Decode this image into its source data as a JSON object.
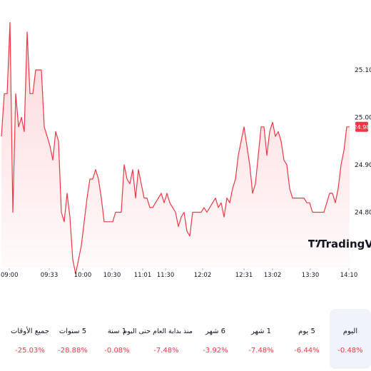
{
  "chart_data": {
    "type": "area",
    "y_ticks": [
      25.1,
      25.0,
      24.9,
      24.8
    ],
    "ylim": [
      24.67,
      25.2
    ],
    "x_ticks": [
      "09:00",
      "09:33",
      "10:00",
      "10:30",
      "11:01",
      "11:30",
      "12:02",
      "12:31",
      "13:02",
      "13:30",
      "14:10"
    ],
    "current_price": "24.98",
    "line_color": "#f23645",
    "fill_color": "#fde3e5",
    "watermark": "TradingView",
    "series": [
      {
        "values": [
          24.96,
          25.05,
          25.05,
          25.2,
          24.8,
          25.05,
          24.98,
          25.0,
          24.97,
          25.18,
          25.05,
          25.05,
          25.1,
          25.1,
          25.1,
          24.98,
          24.96,
          24.94,
          24.91,
          24.97,
          24.95,
          24.8,
          24.78,
          24.84,
          24.79,
          24.7,
          24.67,
          24.7,
          24.73,
          24.78,
          24.83,
          24.87,
          24.87,
          24.89,
          24.87,
          24.83,
          24.78,
          24.78,
          24.78,
          24.78,
          24.8,
          24.8,
          24.8,
          24.9,
          24.87,
          24.86,
          24.89,
          24.83,
          24.89,
          24.86,
          24.83,
          24.83,
          24.81,
          24.81,
          24.82,
          24.83,
          24.84,
          24.82,
          24.84,
          24.82,
          24.81,
          24.8,
          24.77,
          24.79,
          24.8,
          24.76,
          24.75,
          24.8,
          24.8,
          24.8,
          24.8,
          24.81,
          24.8,
          24.81,
          24.82,
          24.83,
          24.81,
          24.82,
          24.79,
          24.83,
          24.82,
          24.85,
          24.87,
          24.92,
          24.95,
          24.98,
          24.94,
          24.9,
          24.84,
          24.86,
          24.92,
          24.98,
          24.98,
          24.92,
          24.97,
          24.99,
          24.96,
          24.97,
          24.95,
          24.91,
          24.9,
          24.85,
          24.83,
          24.83,
          24.83,
          24.83,
          24.83,
          24.82,
          24.82,
          24.8,
          24.8,
          24.8,
          24.8,
          24.8,
          24.82,
          24.84,
          24.84,
          24.82,
          24.85,
          24.9,
          24.93,
          24.98,
          24.98
        ]
      }
    ]
  },
  "periods": [
    {
      "label": "اليوم",
      "value": "0.48%-"
    },
    {
      "label": "5 يوم",
      "value": "6.44%-"
    },
    {
      "label": "1 شهر",
      "value": "7.48%-"
    },
    {
      "label": "6 شهر",
      "value": "3.92%-"
    },
    {
      "label": "منذ بداية العام حتى اليوم",
      "value": "7.48%-"
    },
    {
      "label": "1 سنة",
      "value": "0.08%-"
    },
    {
      "label": "5 سنوات",
      "value": "28.88%-"
    },
    {
      "label": "جميع الأوقات",
      "value": "25.03%-"
    }
  ]
}
